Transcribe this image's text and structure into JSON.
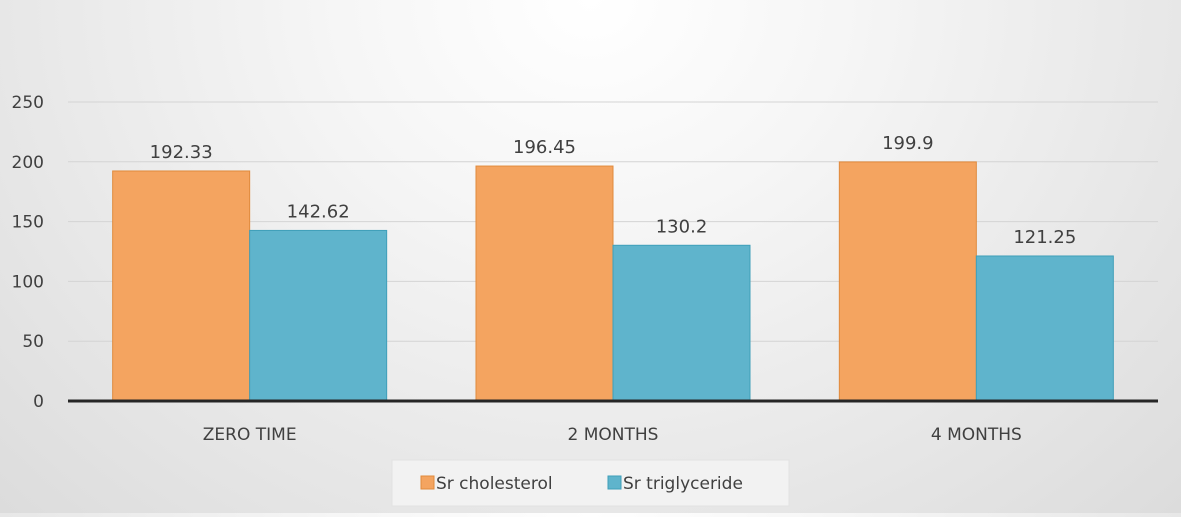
{
  "chart_data": {
    "type": "bar",
    "title": "",
    "xlabel": "",
    "ylabel": "",
    "categories": [
      "ZERO TIME",
      "2 MONTHS",
      "4 MONTHS"
    ],
    "series": [
      {
        "name": "Sr cholesterol",
        "values": [
          192.33,
          196.45,
          199.9
        ],
        "labels": [
          "192.33",
          "196.45",
          "199.9"
        ],
        "color": "#F4A460"
      },
      {
        "name": "Sr triglyceride",
        "values": [
          142.62,
          130.2,
          121.25
        ],
        "labels": [
          "142.62",
          "130.2",
          "121.25"
        ],
        "color": "#5FB4CC"
      }
    ],
    "ylim": [
      0,
      250
    ],
    "yticks": [
      0,
      50,
      100,
      150,
      200,
      250
    ],
    "grid": true,
    "legend": "bottom-center"
  }
}
